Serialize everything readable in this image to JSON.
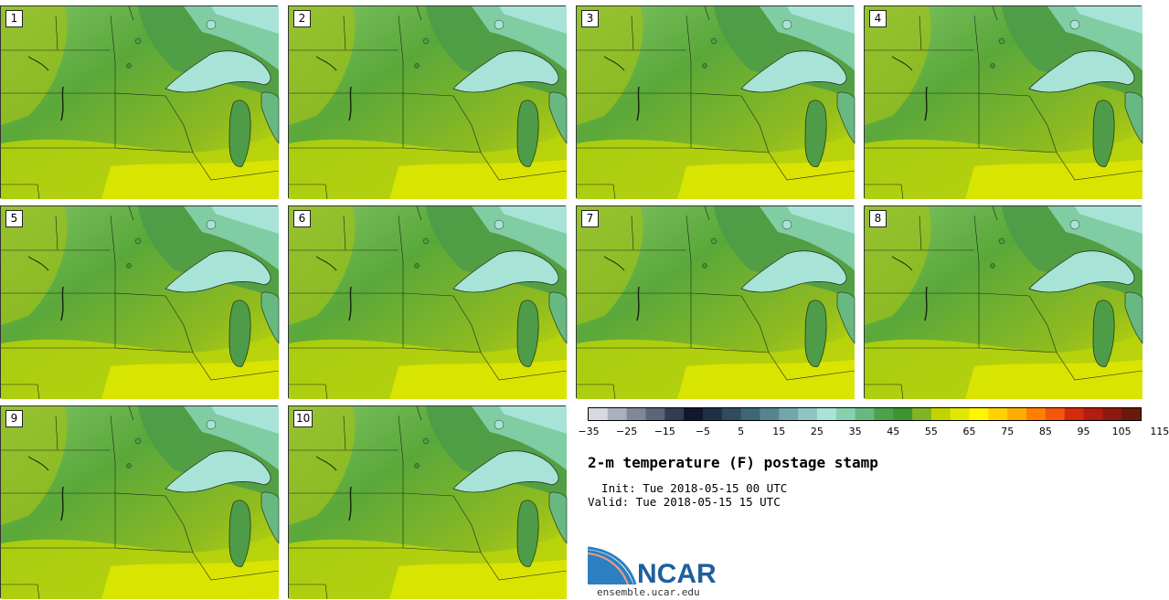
{
  "title": "2-m temperature (F) postage stamp",
  "init_time": "  Init: Tue 2018-05-15 00 UTC",
  "valid_time": "Valid: Tue 2018-05-15 15 UTC",
  "logo_text": "NCAR",
  "logo_url": "ensemble.ucar.edu",
  "panels": [
    "1",
    "2",
    "3",
    "4",
    "5",
    "6",
    "7",
    "8",
    "9",
    "10"
  ],
  "colorbar": {
    "ticks": [
      "−35",
      "−25",
      "−15",
      "−5",
      "5",
      "15",
      "25",
      "35",
      "45",
      "55",
      "65",
      "75",
      "85",
      "95",
      "105",
      "115"
    ],
    "colors": [
      "#d6d9e0",
      "#aab0bc",
      "#7f8899",
      "#5c6578",
      "#333c52",
      "#10182e",
      "#1f3046",
      "#2f4c5e",
      "#3d6676",
      "#56858f",
      "#72a6aa",
      "#90c4c2",
      "#a8e3d8",
      "#86d1ad",
      "#68b981",
      "#4ea04c",
      "#3f942f",
      "#80b422",
      "#c2d400",
      "#e1e800",
      "#fff500",
      "#ffd200",
      "#ffae00",
      "#ff8000",
      "#f2570b",
      "#d32c0d",
      "#b31c10",
      "#8e1a0f",
      "#6a1a0d"
    ]
  }
}
